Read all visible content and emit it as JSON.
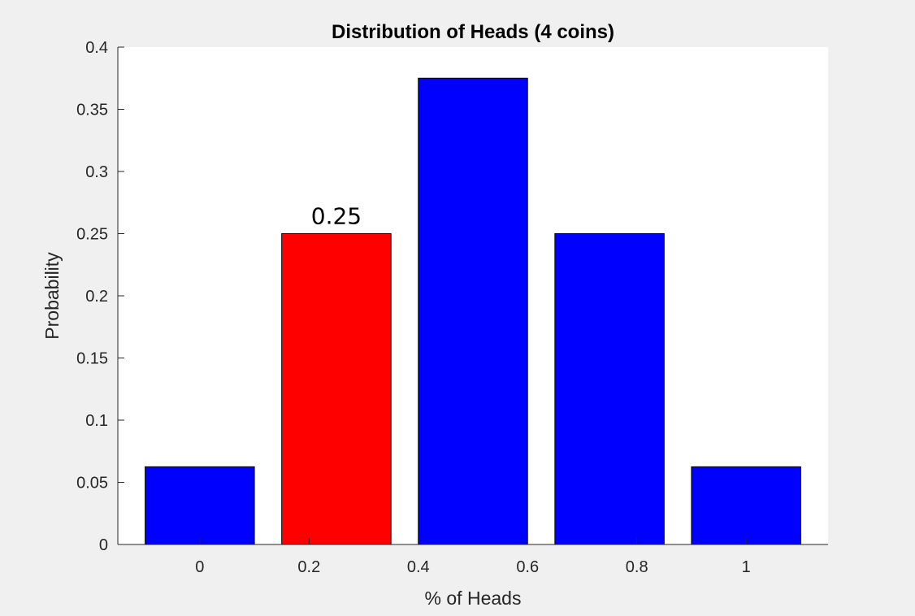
{
  "chart_data": {
    "type": "bar",
    "title": "Distribution of Heads (4 coins)",
    "xlabel": "% of Heads",
    "ylabel": "Probability",
    "categories": [
      "0",
      "0.2",
      "0.4",
      "0.6",
      "0.8",
      "1"
    ],
    "bars": [
      {
        "x": 0.0,
        "value": 0.0625,
        "color": "#0000ff"
      },
      {
        "x": 0.25,
        "value": 0.25,
        "color": "#ff0000",
        "label": "0.25"
      },
      {
        "x": 0.5,
        "value": 0.375,
        "color": "#0000ff"
      },
      {
        "x": 0.75,
        "value": 0.25,
        "color": "#0000ff"
      },
      {
        "x": 1.0,
        "value": 0.0625,
        "color": "#0000ff"
      }
    ],
    "yticks": [
      "0",
      "0.05",
      "0.1",
      "0.15",
      "0.2",
      "0.25",
      "0.3",
      "0.35",
      "0.4"
    ],
    "ylim": [
      0,
      0.4
    ],
    "grid": false,
    "colors": {
      "bar": "#0000ff",
      "highlight": "#ff0000",
      "figure_background": "#f0f0f0",
      "axes_background": "#ffffff"
    }
  }
}
